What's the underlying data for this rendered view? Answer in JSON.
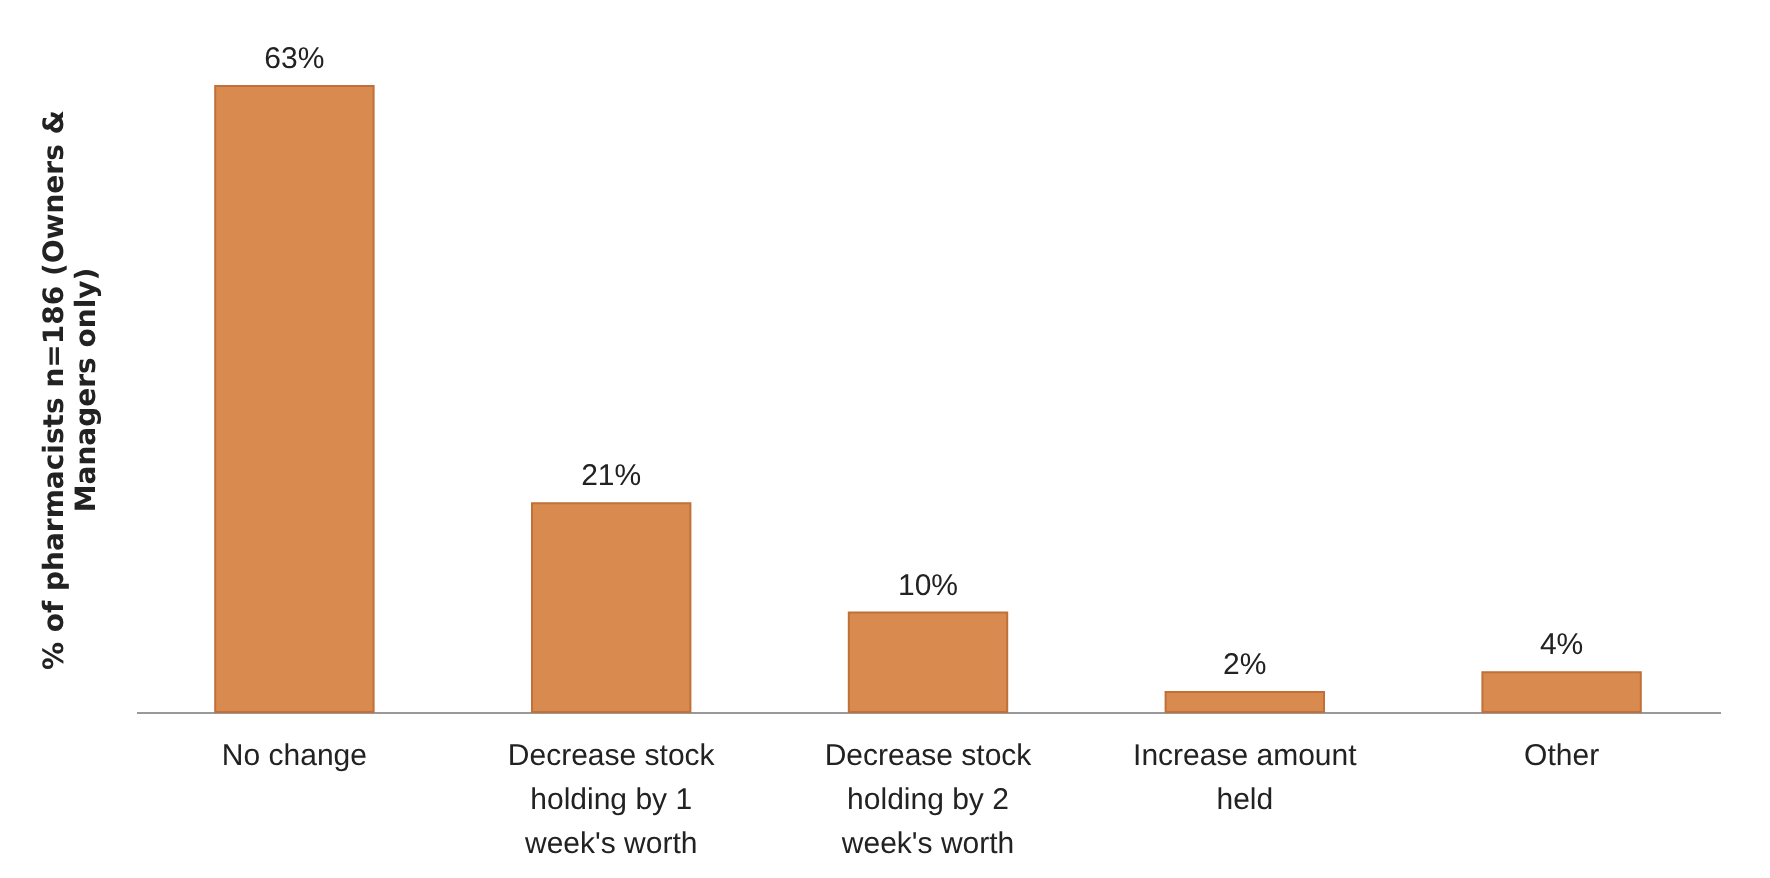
{
  "chart_data": {
    "type": "bar",
    "ylabel": "% of pharmacists n=186 (Owners & Managers only)",
    "categories": [
      "No change",
      "Decrease stock holding by 1 week's worth",
      "Decrease stock holding by 2 week's worth",
      "Increase amount held",
      "Other"
    ],
    "values": [
      63,
      21,
      10,
      2,
      4
    ],
    "value_labels": [
      "63%",
      "21%",
      "10%",
      "2%",
      "4%"
    ],
    "color": "#d98a4e"
  }
}
